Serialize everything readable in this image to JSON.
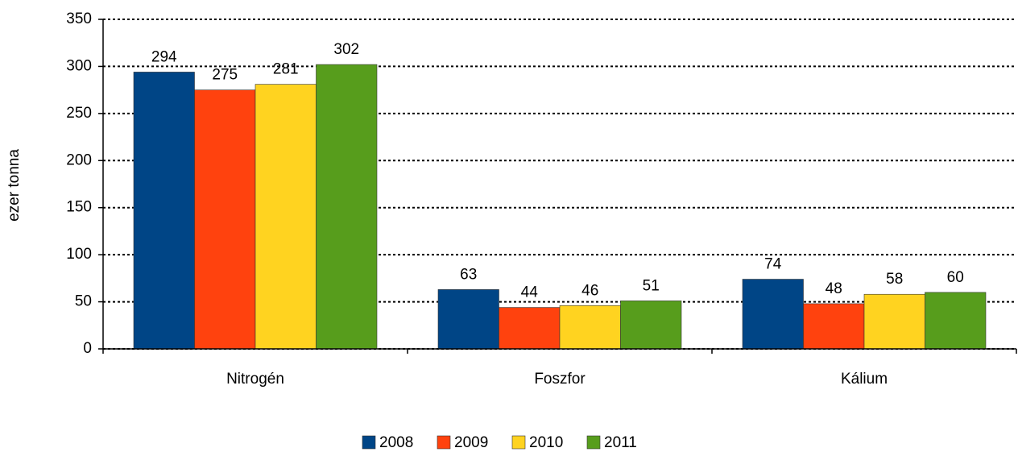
{
  "chart_data": {
    "type": "bar",
    "y_label": "ezer tonna",
    "categories": [
      "Nitrogén",
      "Foszfor",
      "Kálium"
    ],
    "series": [
      {
        "name": "2008",
        "color": "#004586",
        "values": [
          294,
          63,
          74
        ]
      },
      {
        "name": "2009",
        "color": "#ff420e",
        "values": [
          275,
          44,
          48
        ]
      },
      {
        "name": "2010",
        "color": "#ffd320",
        "values": [
          281,
          46,
          58
        ]
      },
      {
        "name": "2011",
        "color": "#579d1c",
        "values": [
          302,
          51,
          60
        ]
      }
    ],
    "ylim": [
      0,
      350
    ],
    "yticks": [
      0,
      50,
      100,
      150,
      200,
      250,
      300,
      350
    ],
    "grid": true,
    "legend": "bottom"
  }
}
